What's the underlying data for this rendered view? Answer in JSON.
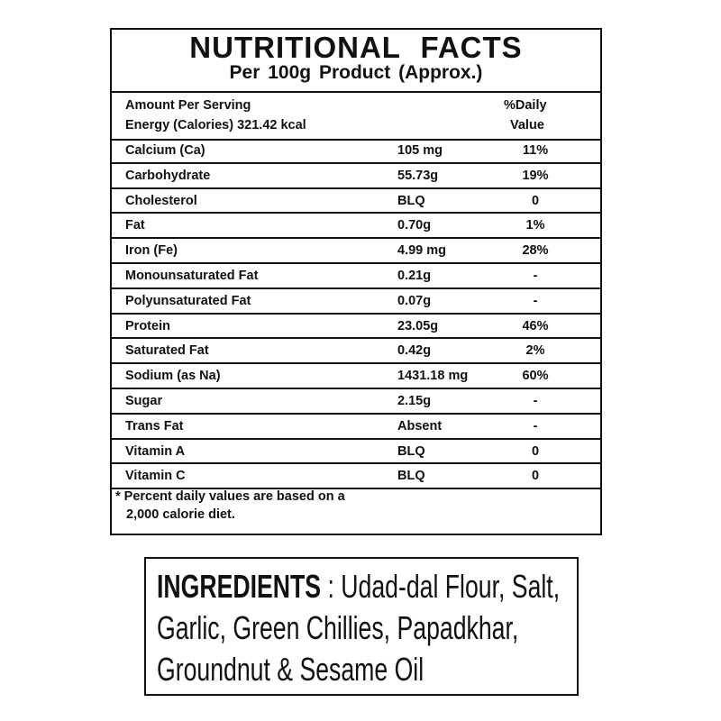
{
  "facts": {
    "title": "NUTRITIONAL  FACTS",
    "subtitle": "Per 100g Product  (Approx.)",
    "header": {
      "amount_label": "Amount Per Serving",
      "energy_label": "Energy (Calories) 321.42 kcal",
      "daily_label_1": "%Daily",
      "daily_label_2": "Value"
    },
    "rows": [
      {
        "name": "Calcium (Ca)",
        "amount": "105 mg",
        "dv": "11%"
      },
      {
        "name": "Carbohydrate",
        "amount": "55.73g",
        "dv": "19%"
      },
      {
        "name": "Cholesterol",
        "amount": "BLQ",
        "dv": "0"
      },
      {
        "name": "Fat",
        "amount": "0.70g",
        "dv": "1%"
      },
      {
        "name": "Iron (Fe)",
        "amount": "4.99 mg",
        "dv": "28%"
      },
      {
        "name": "Monounsaturated Fat",
        "amount": "0.21g",
        "dv": "-"
      },
      {
        "name": "Polyunsaturated Fat",
        "amount": "0.07g",
        "dv": "-"
      },
      {
        "name": "Protein",
        "amount": "23.05g",
        "dv": "46%"
      },
      {
        "name": "Saturated Fat",
        "amount": "0.42g",
        "dv": "2%"
      },
      {
        "name": "Sodium (as Na)",
        "amount": "1431.18 mg",
        "dv": "60%"
      },
      {
        "name": "Sugar",
        "amount": "2.15g",
        "dv": "-"
      },
      {
        "name": "Trans Fat",
        "amount": "Absent",
        "dv": "-"
      },
      {
        "name": "Vitamin A",
        "amount": "BLQ",
        "dv": "0"
      },
      {
        "name": "Vitamin C",
        "amount": "BLQ",
        "dv": "0"
      }
    ],
    "footnote_1": "* Percent daily values are based on a",
    "footnote_2": "2,000 calorie diet."
  },
  "ingredients": {
    "label": "INGREDIENTS",
    "line1": " : Udad-dal Flour, Salt,",
    "line2": "Garlic, Green Chillies, Papadkhar,",
    "line3": "Groundnut & Sesame Oil"
  }
}
